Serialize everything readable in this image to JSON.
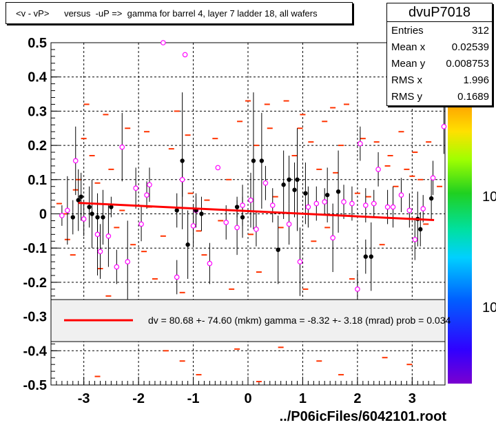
{
  "title": "<v - vP>      versus  -uP =>  gamma for barrel 4, layer 7 ladder 18, all wafers",
  "stats": {
    "name": "dvuP7018",
    "rows": [
      {
        "label": "Entries",
        "value": "312"
      },
      {
        "label": "Mean x",
        "value": "0.02539"
      },
      {
        "label": "Mean y",
        "value": "0.008753"
      },
      {
        "label": "RMS x",
        "value": "1.996"
      },
      {
        "label": "RMS y",
        "value": "0.1689"
      }
    ]
  },
  "footer": "../P06icFiles/6042101.root",
  "legend": "dv =   80.68 +- 74.60 (mkm) gamma =   -8.32 +-  3.18 (mrad) prob = 0.034",
  "palette": {
    "tick_labels": [
      "10",
      "10"
    ]
  },
  "colors": {
    "fit": "#ff0000",
    "points": "#000000",
    "open": "#ff00ff",
    "marks": "#ff3300"
  },
  "chart_data": {
    "type": "scatter",
    "xlim": [
      -3.6,
      3.6
    ],
    "ylim": [
      -0.5,
      0.5
    ],
    "x_ticks": [
      -3,
      -2,
      -1,
      0,
      1,
      2,
      3
    ],
    "x_tick_labels": [
      "-3",
      "-2",
      "-1",
      "0",
      "1",
      "2",
      "3"
    ],
    "y_ticks": [
      -0.5,
      -0.4,
      -0.3,
      -0.2,
      -0.1,
      0,
      0.1,
      0.2,
      0.3,
      0.4,
      0.5
    ],
    "y_tick_labels": [
      "-0.5",
      "-0.4",
      "-0.3",
      "-0.2",
      "-0.1",
      "0",
      "0.1",
      "0.2",
      "0.3",
      "0.4",
      "0.5"
    ],
    "grid": true,
    "fit_line": {
      "x": [
        -3.1,
        3.4
      ],
      "y": [
        0.032,
        -0.018
      ]
    },
    "filled_points": [
      {
        "x": -3.2,
        "y": -0.01,
        "err": 0.05
      },
      {
        "x": -3.1,
        "y": 0.04,
        "err": 0.09
      },
      {
        "x": -3.05,
        "y": 0.05,
        "err": 0.07
      },
      {
        "x": -2.9,
        "y": 0.02,
        "err": 0.06
      },
      {
        "x": -2.85,
        "y": 0.0,
        "err": 0.1
      },
      {
        "x": -2.75,
        "y": -0.01,
        "err": 0.05
      },
      {
        "x": -2.65,
        "y": -0.01,
        "err": 0.08
      },
      {
        "x": -2.5,
        "y": 0.02,
        "err": 0.03
      },
      {
        "x": -1.3,
        "y": 0.01,
        "err": 0.05
      },
      {
        "x": -1.2,
        "y": 0.155,
        "err": 0.2
      },
      {
        "x": -1.1,
        "y": -0.09,
        "err": 0.1
      },
      {
        "x": -0.95,
        "y": 0.01,
        "err": 0.04
      },
      {
        "x": -0.85,
        "y": 0.0,
        "err": 0.05
      },
      {
        "x": -0.2,
        "y": 0.02,
        "err": 0.03
      },
      {
        "x": -0.1,
        "y": -0.01,
        "err": 0.06
      },
      {
        "x": 0.1,
        "y": 0.155,
        "err": 0.2
      },
      {
        "x": 0.25,
        "y": 0.155,
        "err": 0.14
      },
      {
        "x": 0.55,
        "y": -0.105,
        "err": 0.1
      },
      {
        "x": 0.65,
        "y": 0.085,
        "err": 0.1
      },
      {
        "x": 0.75,
        "y": 0.1,
        "err": 0.07
      },
      {
        "x": 0.85,
        "y": 0.07,
        "err": 0.08
      },
      {
        "x": 0.9,
        "y": 0.1,
        "err": 0.15
      },
      {
        "x": 1.05,
        "y": 0.06,
        "err": 0.09
      },
      {
        "x": 1.45,
        "y": 0.055,
        "err": 0.08
      },
      {
        "x": 1.65,
        "y": 0.065,
        "err": 0.12
      },
      {
        "x": 2.15,
        "y": -0.125,
        "err": 0.05
      },
      {
        "x": 2.25,
        "y": -0.125,
        "err": 0.1
      },
      {
        "x": 3.1,
        "y": -0.015,
        "err": 0.08
      },
      {
        "x": 3.15,
        "y": -0.045,
        "err": 0.05
      },
      {
        "x": 3.35,
        "y": 0.045,
        "err": 0.06
      }
    ],
    "open_points": [
      {
        "x": -3.4,
        "y": -0.005,
        "err": 0.03
      },
      {
        "x": -3.3,
        "y": 0.01,
        "err": 0.1
      },
      {
        "x": -3.15,
        "y": 0.155,
        "err": 0.1
      },
      {
        "x": -3.0,
        "y": -0.015,
        "err": 0.05
      },
      {
        "x": -2.75,
        "y": -0.06,
        "err": 0.12
      },
      {
        "x": -2.7,
        "y": -0.11,
        "err": 0.08
      },
      {
        "x": -2.55,
        "y": -0.065,
        "err": 0.09
      },
      {
        "x": -2.4,
        "y": -0.155,
        "err": 0.05
      },
      {
        "x": -2.3,
        "y": 0.195,
        "err": 0.1
      },
      {
        "x": -2.2,
        "y": -0.14,
        "err": 0.12
      },
      {
        "x": -2.05,
        "y": 0.075,
        "err": 0.06
      },
      {
        "x": -1.95,
        "y": -0.03,
        "err": 0.05
      },
      {
        "x": -1.85,
        "y": 0.055,
        "err": 0.04
      },
      {
        "x": -1.8,
        "y": 0.085,
        "err": 0.05
      },
      {
        "x": -1.55,
        "y": 0.5,
        "err": 0.0
      },
      {
        "x": -1.3,
        "y": -0.185,
        "err": 0.05
      },
      {
        "x": -1.2,
        "y": 0.1,
        "err": 0.05
      },
      {
        "x": -1.15,
        "y": 0.465,
        "err": 0.0
      },
      {
        "x": -1.0,
        "y": -0.035,
        "err": 0.06
      },
      {
        "x": -0.95,
        "y": 0.01,
        "err": 0.05
      },
      {
        "x": -0.7,
        "y": -0.145,
        "err": 0.06
      },
      {
        "x": -0.55,
        "y": 0.135,
        "err": 0.0
      },
      {
        "x": -0.4,
        "y": -0.025,
        "err": 0.05
      },
      {
        "x": -0.2,
        "y": -0.04,
        "err": 0.08
      },
      {
        "x": -0.1,
        "y": 0.025,
        "err": 0.06
      },
      {
        "x": 0.05,
        "y": 0.04,
        "err": 0.08
      },
      {
        "x": 0.15,
        "y": -0.045,
        "err": 0.05
      },
      {
        "x": 0.32,
        "y": 0.09,
        "err": 0.05
      },
      {
        "x": 0.45,
        "y": 0.025,
        "err": 0.05
      },
      {
        "x": 0.75,
        "y": -0.03,
        "err": 0.06
      },
      {
        "x": 0.95,
        "y": -0.14,
        "err": 0.1
      },
      {
        "x": 1.1,
        "y": 0.02,
        "err": 0.06
      },
      {
        "x": 1.25,
        "y": 0.03,
        "err": 0.05
      },
      {
        "x": 1.4,
        "y": 0.035,
        "err": 0.04
      },
      {
        "x": 1.55,
        "y": -0.07,
        "err": 0.1
      },
      {
        "x": 1.75,
        "y": 0.035,
        "err": 0.05
      },
      {
        "x": 1.9,
        "y": 0.03,
        "err": 0.05
      },
      {
        "x": 2.0,
        "y": -0.22,
        "err": 0.05
      },
      {
        "x": 2.05,
        "y": 0.205,
        "err": 0.05
      },
      {
        "x": 2.15,
        "y": 0.025,
        "err": 0.05
      },
      {
        "x": 2.3,
        "y": 0.03,
        "err": 0.04
      },
      {
        "x": 2.38,
        "y": 0.13,
        "err": 0.05
      },
      {
        "x": 2.55,
        "y": 0.02,
        "err": 0.05
      },
      {
        "x": 2.65,
        "y": 0.02,
        "err": 0.06
      },
      {
        "x": 2.8,
        "y": 0.055,
        "err": 0.05
      },
      {
        "x": 2.95,
        "y": 0.01,
        "err": 0.05
      },
      {
        "x": 3.05,
        "y": -0.075,
        "err": 0.06
      },
      {
        "x": 3.2,
        "y": 0.015,
        "err": 0.04
      },
      {
        "x": 3.38,
        "y": 0.105,
        "err": 0.05
      },
      {
        "x": 3.58,
        "y": 0.255,
        "err": 0.08
      }
    ],
    "range_marks": [
      {
        "x": -3.45,
        "y": 0.03
      },
      {
        "x": -3.35,
        "y": 0.0
      },
      {
        "x": -3.3,
        "y": -0.075
      },
      {
        "x": -3.2,
        "y": -0.12
      },
      {
        "x": -3.15,
        "y": 0.07
      },
      {
        "x": -3.1,
        "y": 0.1
      },
      {
        "x": -3.0,
        "y": 0.22
      },
      {
        "x": -2.95,
        "y": 0.32
      },
      {
        "x": -2.85,
        "y": 0.17
      },
      {
        "x": -2.75,
        "y": 0.09
      },
      {
        "x": -2.7,
        "y": -0.16
      },
      {
        "x": -2.6,
        "y": 0.29
      },
      {
        "x": -2.55,
        "y": -0.24
      },
      {
        "x": -2.5,
        "y": 0.13
      },
      {
        "x": -2.4,
        "y": -0.04
      },
      {
        "x": -2.3,
        "y": 0.01
      },
      {
        "x": -2.2,
        "y": 0.25
      },
      {
        "x": -2.1,
        "y": -0.09
      },
      {
        "x": -1.9,
        "y": -0.11
      },
      {
        "x": -1.85,
        "y": 0.24
      },
      {
        "x": -1.8,
        "y": 0.02
      },
      {
        "x": -1.7,
        "y": -0.19
      },
      {
        "x": -1.55,
        "y": -0.065
      },
      {
        "x": -1.4,
        "y": 0.19
      },
      {
        "x": -1.3,
        "y": 0.3
      },
      {
        "x": -1.2,
        "y": -0.23
      },
      {
        "x": -1.1,
        "y": 0.23
      },
      {
        "x": -1.05,
        "y": 0.06
      },
      {
        "x": -0.9,
        "y": -0.05
      },
      {
        "x": -0.8,
        "y": -0.12
      },
      {
        "x": -0.75,
        "y": 0.04
      },
      {
        "x": -0.6,
        "y": 0.22
      },
      {
        "x": -0.5,
        "y": -0.02
      },
      {
        "x": -0.35,
        "y": 0.1
      },
      {
        "x": -0.3,
        "y": -0.22
      },
      {
        "x": -0.15,
        "y": 0.27
      },
      {
        "x": 0.0,
        "y": 0.33
      },
      {
        "x": 0.05,
        "y": -0.06
      },
      {
        "x": 0.15,
        "y": 0.2
      },
      {
        "x": 0.2,
        "y": -0.17
      },
      {
        "x": 0.35,
        "y": 0.32
      },
      {
        "x": 0.4,
        "y": 0.25
      },
      {
        "x": 0.5,
        "y": 0.05
      },
      {
        "x": 0.6,
        "y": -0.04
      },
      {
        "x": 0.7,
        "y": 0.33
      },
      {
        "x": 0.85,
        "y": 0.17
      },
      {
        "x": 0.95,
        "y": 0.25
      },
      {
        "x": 1.0,
        "y": 0.29
      },
      {
        "x": 1.05,
        "y": -0.22
      },
      {
        "x": 1.15,
        "y": 0.21
      },
      {
        "x": 1.2,
        "y": -0.08
      },
      {
        "x": 1.3,
        "y": 0.13
      },
      {
        "x": 1.4,
        "y": 0.27
      },
      {
        "x": 1.45,
        "y": -0.04
      },
      {
        "x": 1.55,
        "y": 0.31
      },
      {
        "x": 1.6,
        "y": 0.12
      },
      {
        "x": 1.7,
        "y": 0.2
      },
      {
        "x": 1.8,
        "y": 0.32
      },
      {
        "x": 1.9,
        "y": -0.19
      },
      {
        "x": 2.0,
        "y": 0.06
      },
      {
        "x": 2.1,
        "y": 0.22
      },
      {
        "x": 2.2,
        "y": 0.05
      },
      {
        "x": 2.3,
        "y": 0.03
      },
      {
        "x": 2.35,
        "y": 0.21
      },
      {
        "x": 2.45,
        "y": -0.09
      },
      {
        "x": 2.55,
        "y": 0.14
      },
      {
        "x": 2.6,
        "y": 0.17
      },
      {
        "x": 2.7,
        "y": 0.08
      },
      {
        "x": 2.8,
        "y": 0.24
      },
      {
        "x": 2.9,
        "y": 0.13
      },
      {
        "x": 3.0,
        "y": 0.11
      },
      {
        "x": 3.05,
        "y": 0.18
      },
      {
        "x": 3.15,
        "y": 0.1
      },
      {
        "x": 3.25,
        "y": -0.03
      },
      {
        "x": 3.3,
        "y": 0.21
      },
      {
        "x": 3.5,
        "y": 0.08
      },
      {
        "x": -0.15,
        "y": -0.345
      },
      {
        "x": -0.2,
        "y": -0.395
      },
      {
        "x": -2.6,
        "y": -0.37
      },
      {
        "x": -1.5,
        "y": -0.4
      },
      {
        "x": -1.2,
        "y": -0.43
      },
      {
        "x": 1.3,
        "y": -0.43
      },
      {
        "x": 2.5,
        "y": -0.42
      },
      {
        "x": -2.75,
        "y": -0.475
      },
      {
        "x": -1.6,
        "y": -0.365
      },
      {
        "x": 0.6,
        "y": -0.39
      },
      {
        "x": 1.7,
        "y": -0.47
      },
      {
        "x": 2.95,
        "y": -0.44
      },
      {
        "x": -0.9,
        "y": -0.47
      },
      {
        "x": 0.2,
        "y": -0.49
      }
    ]
  }
}
